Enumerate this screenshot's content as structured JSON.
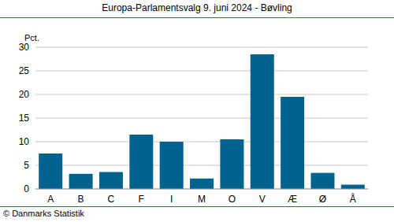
{
  "chart_data": {
    "type": "bar",
    "title": "Europa-Parlamentsvalg 9. juni 2024 - Bøvling",
    "y_label": "Pct.",
    "source": "© Danmarks Statistik",
    "categories": [
      "A",
      "B",
      "C",
      "F",
      "I",
      "M",
      "O",
      "V",
      "Æ",
      "Ø",
      "Å"
    ],
    "values": [
      7.5,
      3.2,
      3.6,
      11.5,
      10.0,
      2.2,
      10.5,
      28.5,
      19.5,
      3.4,
      0.9
    ],
    "color": "#00628f",
    "ylim": [
      0,
      30
    ],
    "yticks": [
      0,
      5,
      10,
      15,
      20,
      25,
      30
    ],
    "grid": true
  }
}
